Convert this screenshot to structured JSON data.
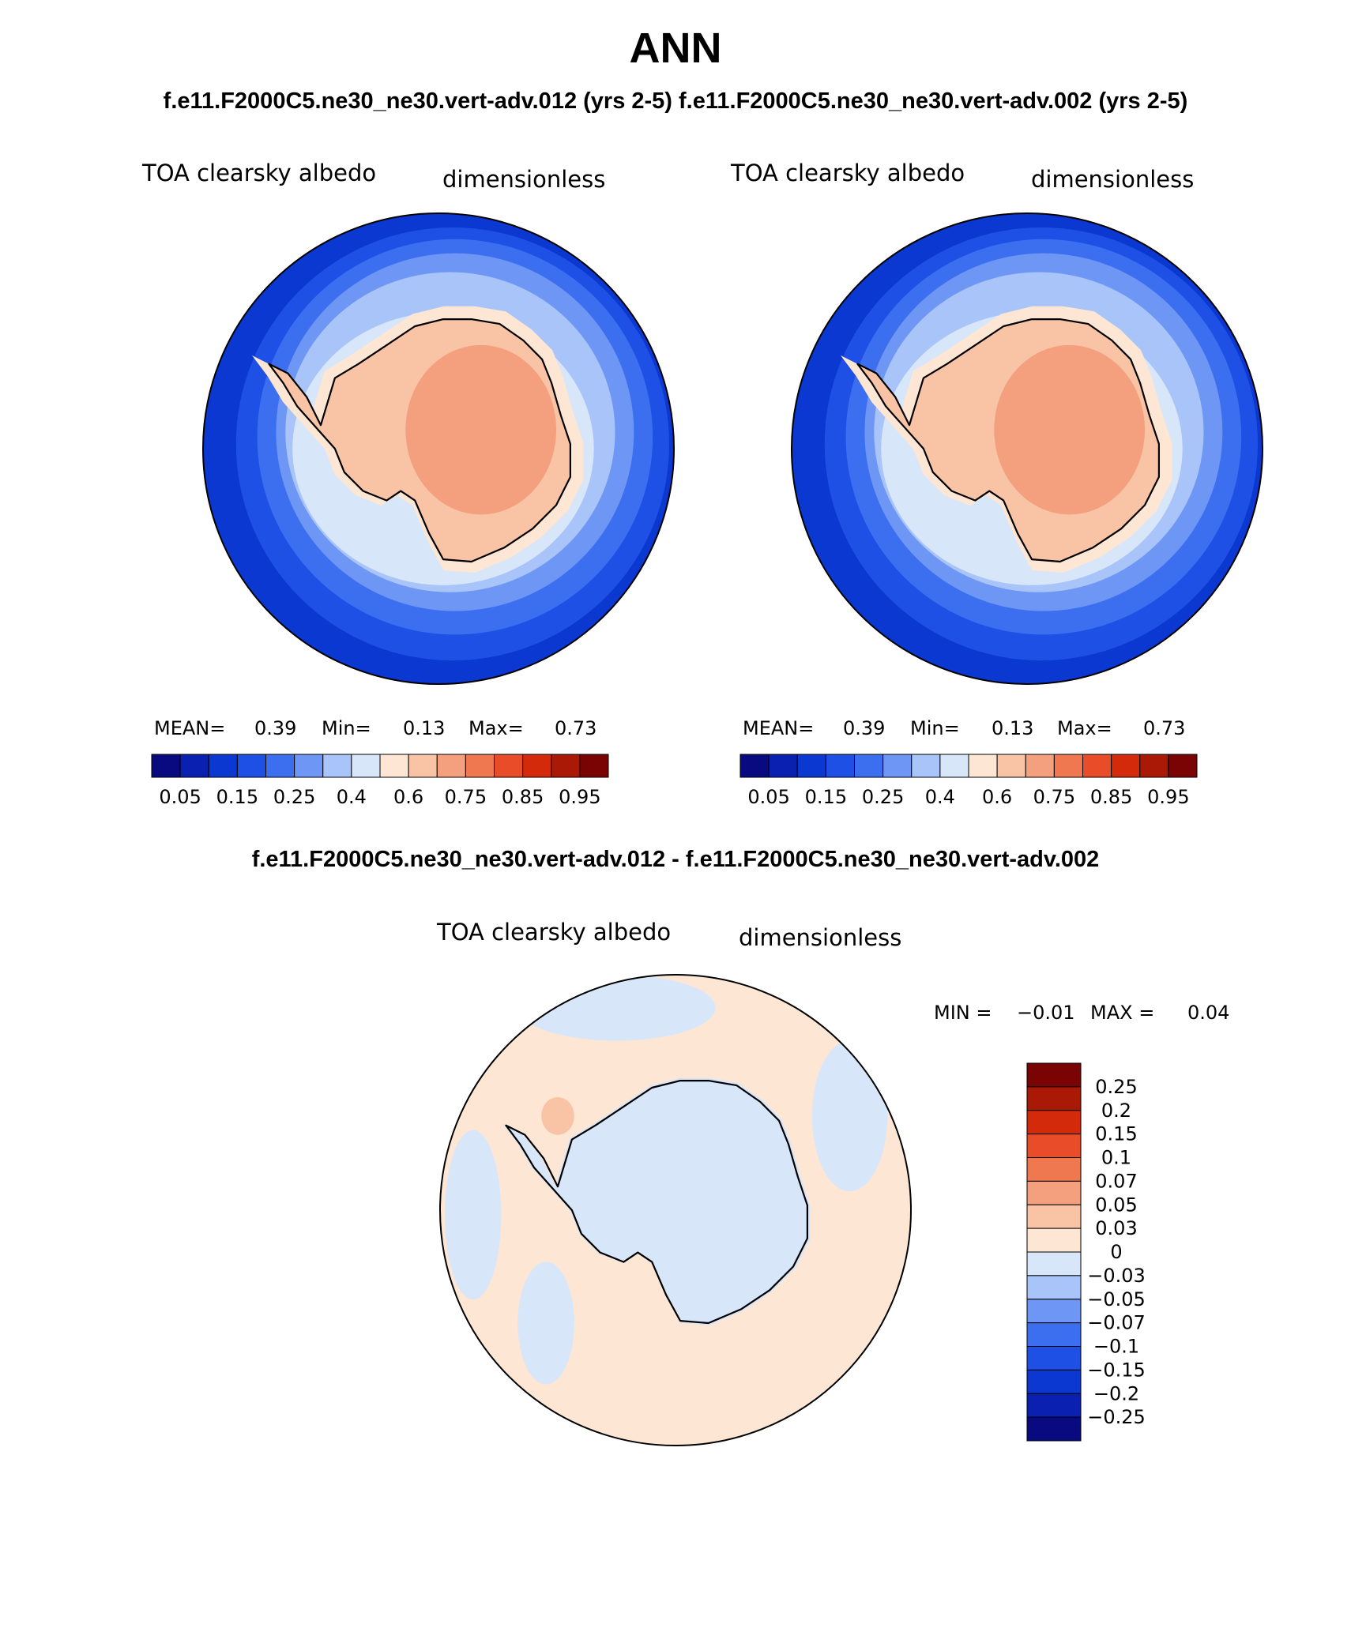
{
  "title": "ANN",
  "subtitle_top": "f.e11.F2000C5.ne30_ne30.vert-adv.012 (yrs 2-5) f.e11.F2000C5.ne30_ne30.vert-adv.002 (yrs 2-5)",
  "subtitle_diff": "f.e11.F2000C5.ne30_ne30.vert-adv.012 - f.e11.F2000C5.ne30_ne30.vert-adv.002",
  "colors": {
    "ocean_low": "#2255e6",
    "abs_scale": [
      "#0a0a80",
      "#0a20b0",
      "#0a38d0",
      "#1e50e6",
      "#3c6ef0",
      "#6e96f5",
      "#a8c4f8",
      "#d8e6fa",
      "#fde6d4",
      "#f9c4a6",
      "#f4a07e",
      "#f07850",
      "#e84c28",
      "#d42a0c",
      "#aa1806",
      "#7a0404"
    ],
    "diff_scale": [
      "#0a0a80",
      "#0a20b0",
      "#0a38d0",
      "#1e50e6",
      "#3c6ef0",
      "#6e96f5",
      "#a8c4f8",
      "#d8e6fa",
      "#fde6d4",
      "#f9c4a6",
      "#f4a07e",
      "#f07850",
      "#e84c28",
      "#d42a0c",
      "#aa1806",
      "#7a0404"
    ]
  },
  "panels": [
    {
      "variable": "TOA clearsky albedo",
      "units": "dimensionless",
      "mean_label": "MEAN=",
      "mean_value": "0.39",
      "min_label": "Min=",
      "min_value": "0.13",
      "max_label": "Max=",
      "max_value": "0.73",
      "colorbar_ticks": [
        "0.05",
        "0.15",
        "0.25",
        "0.4",
        "0.6",
        "0.75",
        "0.85",
        "0.95"
      ]
    },
    {
      "variable": "TOA clearsky albedo",
      "units": "dimensionless",
      "mean_label": "MEAN=",
      "mean_value": "0.39",
      "min_label": "Min=",
      "min_value": "0.13",
      "max_label": "Max=",
      "max_value": "0.73",
      "colorbar_ticks": [
        "0.05",
        "0.15",
        "0.25",
        "0.4",
        "0.6",
        "0.75",
        "0.85",
        "0.95"
      ]
    }
  ],
  "diff_panel": {
    "variable": "TOA clearsky albedo",
    "units": "dimensionless",
    "min_label": "MIN =",
    "min_value": "−0.01",
    "max_label": "MAX =",
    "max_value": "0.04",
    "colorbar_ticks": [
      "0.25",
      "0.2",
      "0.15",
      "0.1",
      "0.07",
      "0.05",
      "0.03",
      "0",
      "−0.03",
      "−0.05",
      "−0.07",
      "−0.1",
      "−0.15",
      "−0.2",
      "−0.25"
    ]
  }
}
